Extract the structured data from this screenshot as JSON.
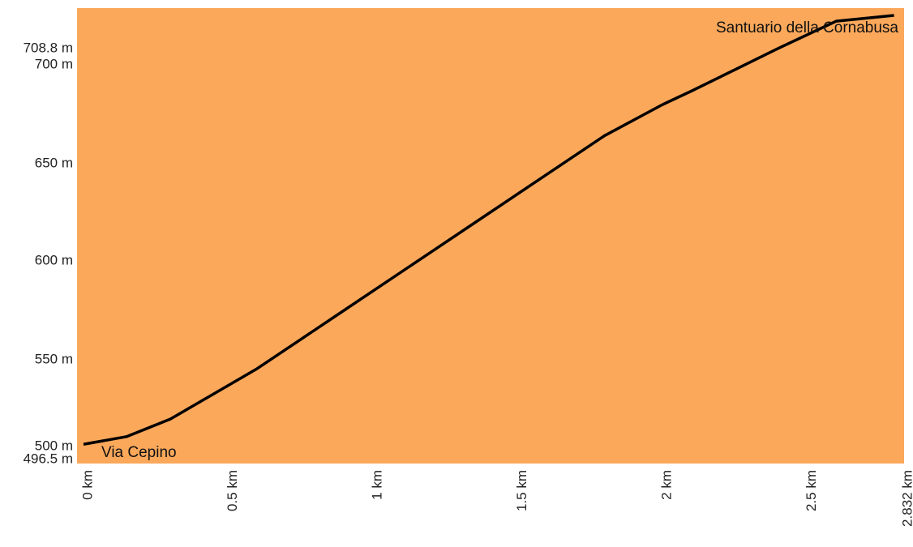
{
  "chart_data": {
    "type": "area",
    "title": "",
    "xlabel": "",
    "ylabel": "",
    "xlim": [
      0,
      2.832
    ],
    "ylim": [
      496.5,
      708.8
    ],
    "x_ticks": [
      {
        "value": 0,
        "label": "0 km"
      },
      {
        "value": 0.5,
        "label": "0.5 km"
      },
      {
        "value": 1,
        "label": "1 km"
      },
      {
        "value": 1.5,
        "label": "1.5 km"
      },
      {
        "value": 2,
        "label": "2 km"
      },
      {
        "value": 2.5,
        "label": "2.5 km"
      },
      {
        "value": 2.832,
        "label": "2.832 km"
      }
    ],
    "y_ticks": [
      {
        "value": 496.5,
        "label": "496.5 m"
      },
      {
        "value": 500,
        "label": "500 m"
      },
      {
        "value": 550,
        "label": "550 m"
      },
      {
        "value": 600,
        "label": "600 m"
      },
      {
        "value": 650,
        "label": "650 m"
      },
      {
        "value": 700,
        "label": "700 m"
      },
      {
        "value": 708.8,
        "label": "708.8 m"
      }
    ],
    "grid": false,
    "colors": {
      "fill": "#FBA85B",
      "line": "#000000"
    },
    "series": [
      {
        "x": [
          0,
          0.15,
          0.3,
          0.45,
          0.6,
          0.75,
          0.9,
          1.0,
          1.2,
          1.4,
          1.6,
          1.8,
          2.0,
          2.1,
          2.25,
          2.4,
          2.6,
          2.8
        ],
        "values": [
          512,
          516,
          525,
          538,
          551,
          566,
          581,
          591,
          611,
          631,
          651,
          671,
          687,
          694,
          705,
          716,
          730,
          733
        ]
      }
    ],
    "annotations": [
      {
        "text": "Via Cepino",
        "x": 0.06,
        "y": 500
      },
      {
        "text": "Santuario della Cornabusa",
        "x": 2.75,
        "y": 718
      }
    ]
  }
}
